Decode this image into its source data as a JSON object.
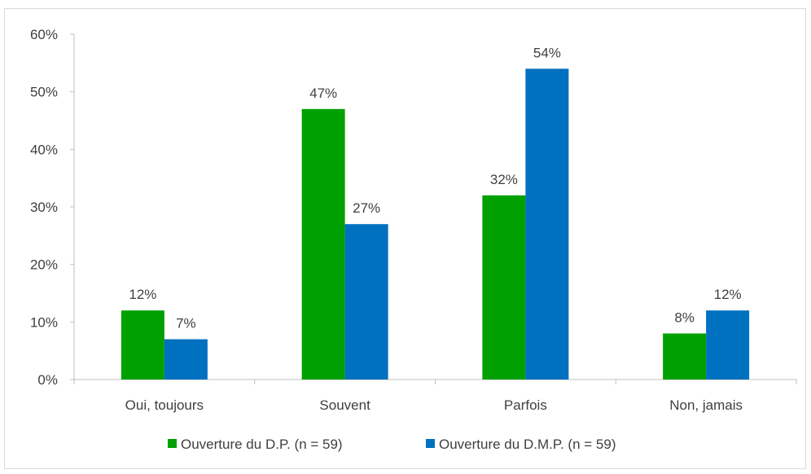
{
  "chart_data": {
    "type": "bar",
    "categories": [
      "Oui, toujours",
      "Souvent",
      "Parfois",
      "Non, jamais"
    ],
    "series": [
      {
        "name": "Ouverture du D.P. (n = 59)",
        "color": "#00a000",
        "values": [
          12,
          47,
          32,
          8
        ]
      },
      {
        "name": "Ouverture du D.M.P. (n = 59)",
        "color": "#0070c0",
        "values": [
          7,
          27,
          54,
          12
        ]
      }
    ],
    "data_labels": [
      [
        "12%",
        "47%",
        "32%",
        "8%"
      ],
      [
        "7%",
        "27%",
        "54%",
        "12%"
      ]
    ],
    "y_ticks": [
      {
        "value": 0,
        "label": "0%"
      },
      {
        "value": 10,
        "label": "10%"
      },
      {
        "value": 20,
        "label": "20%"
      },
      {
        "value": 30,
        "label": "30%"
      },
      {
        "value": 40,
        "label": "40%"
      },
      {
        "value": 50,
        "label": "50%"
      },
      {
        "value": 60,
        "label": "60%"
      }
    ],
    "ylim": [
      0,
      60
    ],
    "grid": false,
    "legend_position": "bottom",
    "title": "",
    "xlabel": "",
    "ylabel": ""
  }
}
